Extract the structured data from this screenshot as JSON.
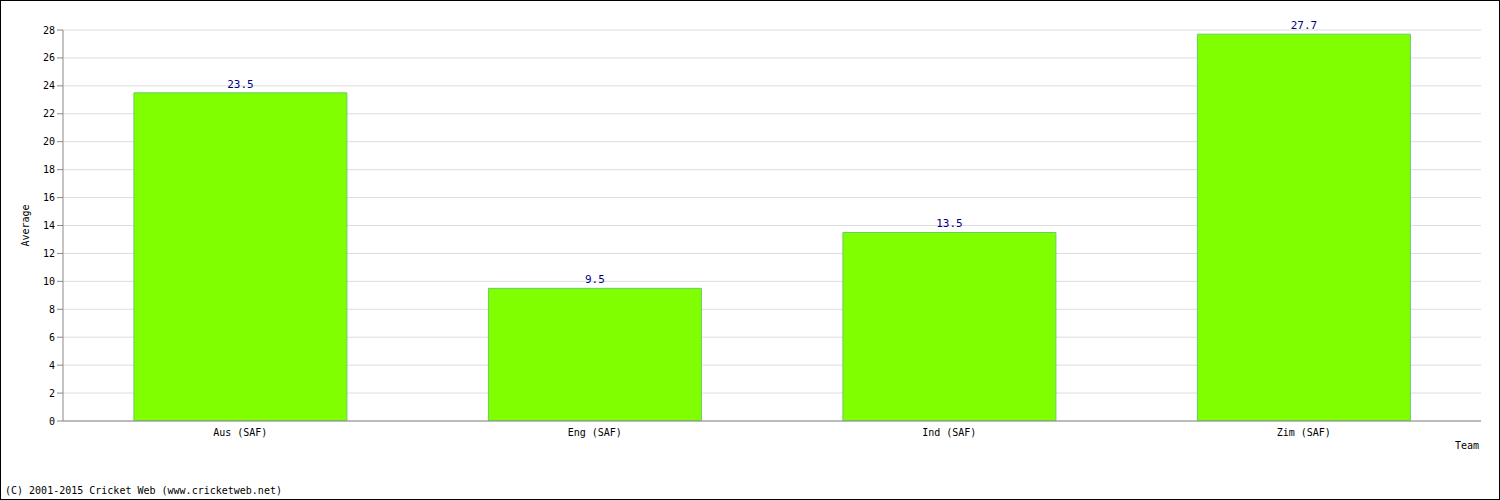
{
  "chart_data": {
    "type": "bar",
    "categories": [
      "Aus (SAF)",
      "Eng (SAF)",
      "Ind (SAF)",
      "Zim (SAF)"
    ],
    "values": [
      23.5,
      9.5,
      13.5,
      27.7
    ],
    "color": "#80ff00",
    "ylim": [
      0,
      28
    ],
    "yticks": [
      0,
      2,
      4,
      6,
      8,
      10,
      12,
      14,
      16,
      18,
      20,
      22,
      24,
      26,
      28
    ],
    "grid": true,
    "data_labels": true,
    "xlabel": "Team",
    "ylabel": "Average",
    "annotations": [
      "(C) 2001-2015 Cricket Web (www.cricketweb.net)"
    ]
  }
}
